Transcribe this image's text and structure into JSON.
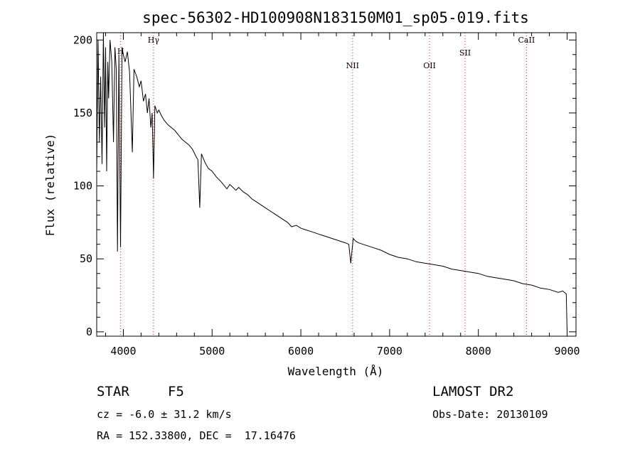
{
  "chart_data": {
    "type": "line",
    "title": "spec-56302-HD100908N183150M01_sp05-019.fits",
    "xlabel": "Wavelength (Å)",
    "ylabel": "Flux (relative)",
    "xlim": [
      3700,
      9100
    ],
    "ylim": [
      -3,
      205
    ],
    "xticks": [
      4000,
      5000,
      6000,
      7000,
      8000,
      9000
    ],
    "yticks": [
      0,
      50,
      100,
      150,
      200
    ],
    "grid": false,
    "series": [
      {
        "x": [
          3700,
          3715,
          3730,
          3745,
          3760,
          3775,
          3790,
          3800,
          3812,
          3825,
          3835,
          3850,
          3870,
          3889,
          3905,
          3920,
          3934,
          3950,
          3968,
          3985,
          4000,
          4020,
          4045,
          4070,
          4101,
          4120,
          4150,
          4180,
          4200,
          4226,
          4250,
          4271,
          4290,
          4310,
          4325,
          4340,
          4355,
          4383,
          4400,
          4430,
          4460,
          4500,
          4540,
          4580,
          4620,
          4660,
          4700,
          4740,
          4780,
          4820,
          4840,
          4861,
          4880,
          4920,
          4957,
          5000,
          5050,
          5100,
          5167,
          5200,
          5269,
          5300,
          5350,
          5400,
          5450,
          5500,
          5550,
          5600,
          5650,
          5700,
          5750,
          5800,
          5850,
          5895,
          5950,
          6000,
          6050,
          6100,
          6150,
          6200,
          6250,
          6300,
          6350,
          6400,
          6450,
          6500,
          6540,
          6563,
          6590,
          6620,
          6650,
          6700,
          6800,
          6900,
          7000,
          7100,
          7200,
          7300,
          7400,
          7500,
          7600,
          7700,
          7800,
          7900,
          8000,
          8100,
          8200,
          8300,
          8400,
          8500,
          8600,
          8700,
          8800,
          8900,
          8950,
          8990,
          9000
        ],
        "y": [
          110,
          200,
          130,
          175,
          115,
          205,
          140,
          195,
          110,
          185,
          160,
          200,
          185,
          130,
          195,
          180,
          55,
          190,
          58,
          195,
          190,
          185,
          192,
          178,
          123,
          180,
          175,
          168,
          172,
          158,
          163,
          150,
          160,
          140,
          150,
          105,
          155,
          150,
          152,
          148,
          145,
          142,
          140,
          138,
          135,
          132,
          130,
          128,
          125,
          120,
          118,
          85,
          122,
          116,
          112,
          110,
          106,
          103,
          98,
          101,
          97,
          99,
          96,
          94,
          91,
          89,
          87,
          85,
          83,
          81,
          79,
          77,
          75,
          72,
          73,
          71,
          70,
          69,
          68,
          67,
          66,
          65,
          64,
          63,
          62,
          61,
          60,
          47,
          64,
          62,
          61,
          60,
          58,
          56,
          53,
          51,
          50,
          48,
          47,
          46,
          45,
          43,
          42,
          41,
          40,
          38,
          37,
          36,
          35,
          33,
          32,
          30,
          29,
          27,
          28,
          26,
          0
        ]
      }
    ],
    "spectral_lines": [
      {
        "label": "H",
        "wavelength": 3970
      },
      {
        "label": "Hγ",
        "wavelength": 4340
      },
      {
        "label": "NII",
        "wavelength": 6583
      },
      {
        "label": "OII",
        "wavelength": 7450
      },
      {
        "label": "SII",
        "wavelength": 7850
      },
      {
        "label": "CaII",
        "wavelength": 8542
      }
    ]
  },
  "info": {
    "object_class": "STAR",
    "subclass": "F5",
    "survey": "LAMOST DR2",
    "cz": "cz = -6.0 ± 31.2 km/s",
    "obs_date": "Obs-Date: 20130109",
    "coords": "RA = 152.33800, DEC =  17.16476"
  }
}
